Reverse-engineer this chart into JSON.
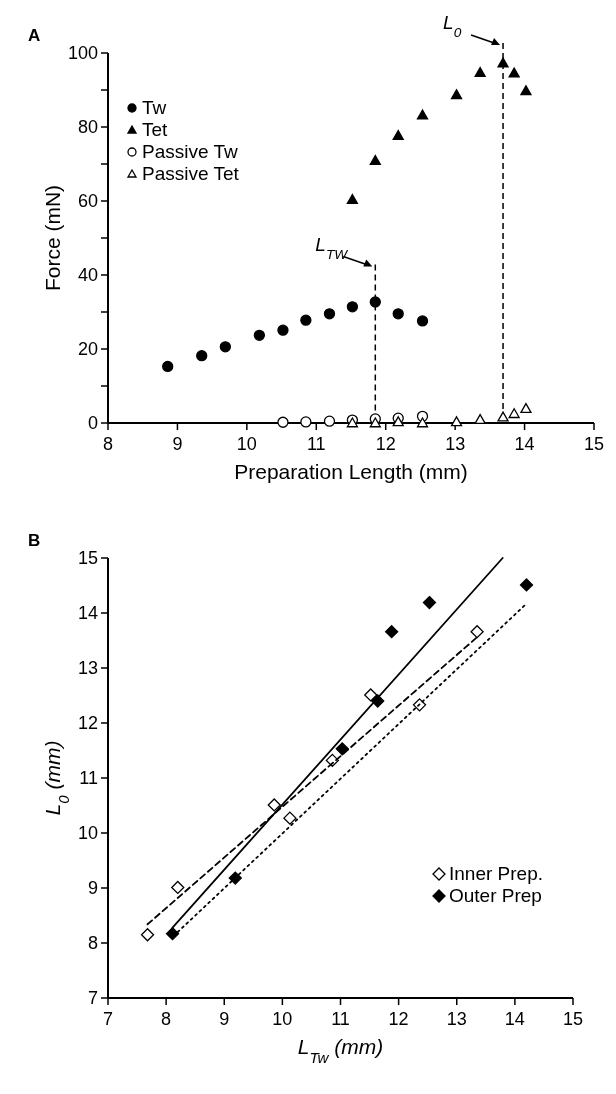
{
  "chart_data": [
    {
      "type": "scatter",
      "title": "A",
      "xlabel": "Preparation Length (mm)",
      "ylabel": "Force (mN)",
      "xlim": [
        8,
        15
      ],
      "xticks": [
        8,
        9,
        10,
        11,
        12,
        13,
        14,
        15
      ],
      "ylim": [
        0,
        100
      ],
      "yticks": [
        0,
        {
          "value": 10,
          "label": null
        },
        20,
        {
          "value": 30,
          "label": null
        },
        40,
        {
          "value": 50,
          "label": null
        },
        60,
        {
          "value": 70,
          "label": null
        },
        80,
        {
          "value": 90,
          "label": null
        },
        100
      ],
      "legend": "top left",
      "grid": false,
      "series": [
        {
          "name": "Tw",
          "marker": "circle",
          "color": "#000000",
          "x": [
            8.86,
            9.35,
            9.69,
            10.18,
            10.52,
            10.85,
            11.19,
            11.52,
            11.85,
            12.18,
            12.53
          ],
          "values": [
            15.3,
            18.2,
            20.6,
            23.7,
            25.1,
            27.8,
            29.5,
            31.4,
            32.7,
            29.5,
            27.6
          ]
        },
        {
          "name": "Tet",
          "marker": "triangle",
          "color": "#000000",
          "x": [
            11.52,
            11.85,
            12.18,
            12.53,
            13.02,
            13.36,
            13.69,
            13.85,
            14.02
          ],
          "values": [
            60.4,
            70.9,
            77.7,
            83.2,
            88.7,
            94.7,
            97.3,
            94.6,
            89.8
          ]
        },
        {
          "name": "Passive Tw",
          "marker": "circle",
          "color": "#ffffff",
          "x": [
            10.52,
            10.85,
            11.19,
            11.52,
            11.85,
            12.18,
            12.53
          ],
          "values": [
            0.2,
            0.3,
            0.5,
            0.8,
            1.1,
            1.3,
            1.8
          ]
        },
        {
          "name": "Passive Tet",
          "marker": "triangle",
          "color": "#ffffff",
          "x": [
            11.52,
            11.85,
            12.18,
            12.53,
            13.02,
            13.36,
            13.69,
            13.85,
            14.02
          ],
          "values": [
            0,
            0,
            0.3,
            0,
            0.3,
            0.9,
            1.6,
            2.5,
            3.9
          ]
        }
      ],
      "ref_lines": [
        {
          "axis": "x",
          "value": 11.85,
          "label": "L$_{TW}$",
          "line_style": "dashed"
        },
        {
          "axis": "x",
          "value": 13.69,
          "label": "L$_{0}$",
          "line_style": "dashed"
        }
      ]
    },
    {
      "type": "scatter",
      "title": "B",
      "xlabel": "L$_{Tw}$ (mm)",
      "ylabel": "L$_{0}$ (mm)",
      "xlim": [
        7,
        15
      ],
      "xticks": [
        7,
        8,
        9,
        10,
        11,
        12,
        13,
        14,
        15
      ],
      "ylim": [
        7,
        15
      ],
      "yticks": [
        7,
        8,
        9,
        10,
        11,
        12,
        13,
        14,
        15
      ],
      "legend": "bottom right",
      "grid": false,
      "series": [
        {
          "name": "Inner Prep.",
          "marker": "diamond",
          "color": "#ffffff",
          "x": [
            7.68,
            8.2,
            9.86,
            10.13,
            10.86,
            11.52,
            12.36,
            13.35
          ],
          "values": [
            8.15,
            9.01,
            10.51,
            10.27,
            11.32,
            12.51,
            12.33,
            13.66
          ]
        },
        {
          "name": "Outer Prep",
          "marker": "diamond",
          "color": "#000000",
          "x": [
            8.11,
            9.19,
            11.03,
            11.64,
            11.88,
            12.53,
            14.2
          ],
          "values": [
            8.17,
            9.18,
            11.53,
            12.4,
            13.66,
            14.19,
            14.51
          ]
        },
        {
          "type": "line",
          "line_style": "solid",
          "color": "#000000",
          "x": [
            8.11,
            13.79
          ],
          "values": [
            8.28,
            15.0
          ]
        },
        {
          "type": "line",
          "line_style": "dashed",
          "color": "#000000",
          "x": [
            7.68,
            13.35
          ],
          "values": [
            8.34,
            13.56
          ]
        },
        {
          "type": "line",
          "line_style": "dotted",
          "color": "#000000",
          "x": [
            8.2,
            14.21
          ],
          "values": [
            8.2,
            14.18
          ]
        }
      ]
    }
  ]
}
